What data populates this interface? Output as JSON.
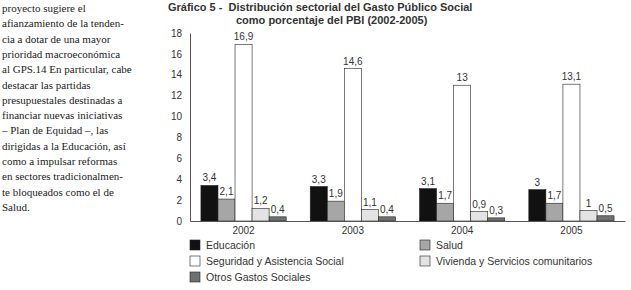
{
  "side_text": {
    "lines": [
      "proyecto sugiere el",
      "afianzamiento de la tenden-",
      "cia a dotar de una mayor",
      "prioridad macroeconómica",
      "al GPS.14 En particular, cabe",
      "destacar las partidas",
      "presupuestales destinadas a",
      "financiar nuevas iniciativas",
      "– Plan de Equidad –, las",
      "dirigidas a la Educación, así",
      "como a impulsar reformas",
      "en sectores tradicionalmen-",
      "te bloqueados como el de",
      "Salud."
    ]
  },
  "chart_data": {
    "type": "bar",
    "title": "Gráfico 5 -  Distribución sectorial del Gasto Público Social",
    "subtitle": "como porcentaje del PBI (2002-2005)",
    "categories": [
      "2002",
      "2003",
      "2004",
      "2005"
    ],
    "series": [
      {
        "name": "Educación",
        "color": "#111111",
        "values": [
          3.4,
          3.3,
          3.1,
          3
        ],
        "value_labels": [
          "3,4",
          "3,3",
          "3,1",
          "3"
        ]
      },
      {
        "name": "Salud",
        "color": "#a6a6a6",
        "values": [
          2.1,
          1.9,
          1.7,
          1.7
        ],
        "value_labels": [
          "2,1",
          "1,9",
          "1,7",
          "1,7"
        ]
      },
      {
        "name": "Seguridad y Asistencia Social",
        "color": "#ffffff",
        "values": [
          16.9,
          14.6,
          13,
          13.1
        ],
        "value_labels": [
          "16,9",
          "14,6",
          "13",
          "13,1"
        ]
      },
      {
        "name": "Vivienda y Servicios comunitarios",
        "color": "#e3e3e3",
        "values": [
          1.2,
          1.1,
          0.9,
          1
        ],
        "value_labels": [
          "1,2",
          "1,1",
          "0,9",
          "1"
        ]
      },
      {
        "name": "Otros Gastos Sociales",
        "color": "#707070",
        "values": [
          0.4,
          0.4,
          0.3,
          0.5
        ],
        "value_labels": [
          "0,4",
          "0,4",
          "0,3",
          "0,5"
        ]
      }
    ],
    "ylim": [
      0,
      18
    ],
    "yticks": [
      0,
      2,
      4,
      6,
      8,
      10,
      12,
      14,
      16,
      18
    ],
    "grid": false,
    "data_labels": true,
    "legend": "bottom"
  }
}
